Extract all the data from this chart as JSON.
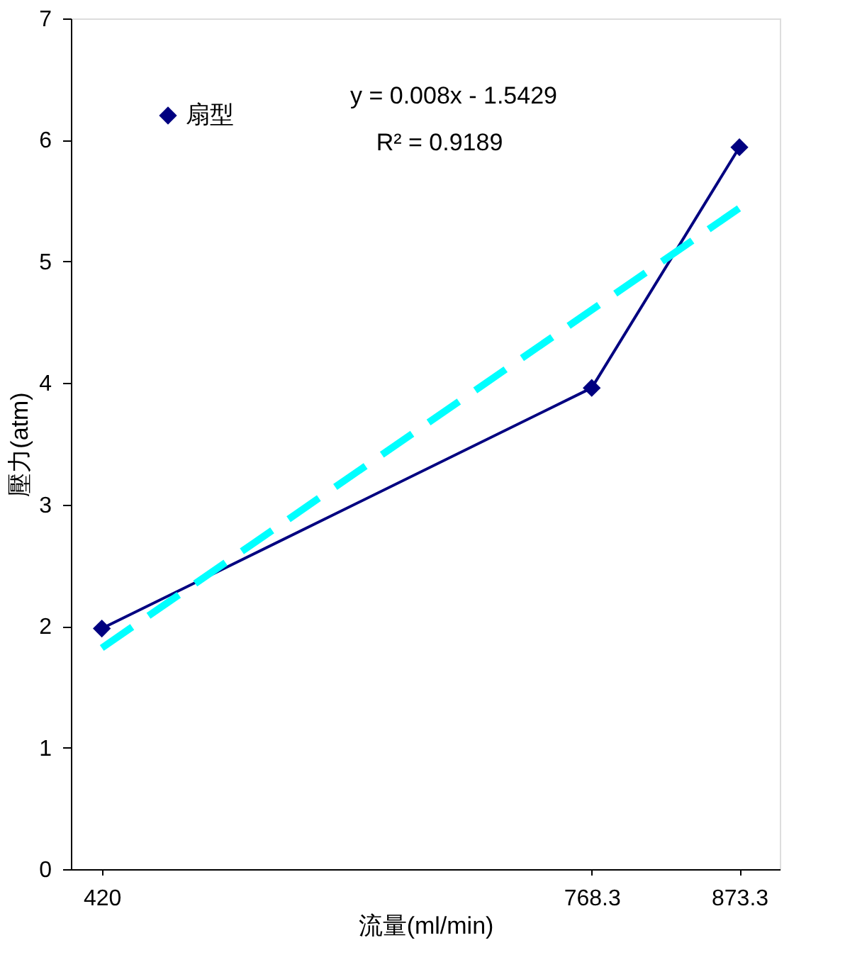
{
  "chart_data": {
    "type": "line",
    "xlabel": "流量(ml/min)",
    "ylabel": "壓力(atm)",
    "xlim": [
      398,
      902
    ],
    "xticks": [
      420,
      768.3,
      873.3
    ],
    "ylim": [
      0,
      7
    ],
    "yticks": [
      0,
      1,
      2,
      3,
      4,
      5,
      6,
      7
    ],
    "grid": false,
    "legend": "top left",
    "series": [
      {
        "name": "扇型",
        "color": "#000080",
        "x": [
          420,
          768.3,
          873.3
        ],
        "values": [
          1.98,
          3.96,
          5.94
        ],
        "marker": "diamond",
        "line_style": "solid"
      },
      {
        "color": "#00ffff",
        "x": [
          420,
          873.3
        ],
        "values": [
          1.82,
          5.44
        ],
        "marker": "none",
        "line_style": "dashed"
      }
    ],
    "annotations": [
      "y = 0.008x - 1.5429",
      "R² = 0.9189"
    ]
  }
}
